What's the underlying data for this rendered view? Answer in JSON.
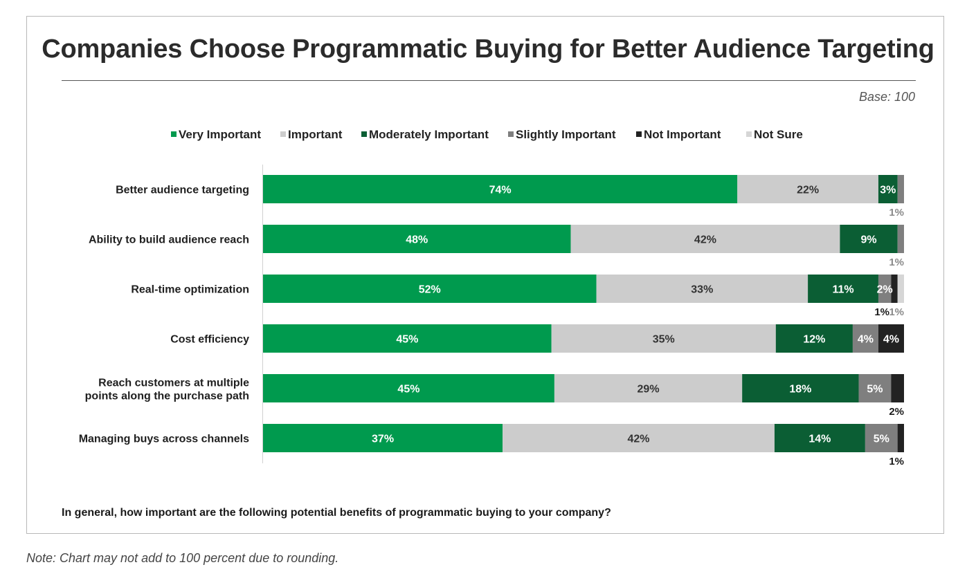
{
  "page": {
    "title": "Companies Choose Programmatic Buying for Better Audience Targeting",
    "base": "Base: 100",
    "question": "In general, how important are the following potential benefits of programmatic buying to your company?",
    "note": "Note: Chart may not add to 100 percent due to rounding."
  },
  "colors": {
    "very_important": "#009a4e",
    "important": "#cccccc",
    "moderately_important": "#0b5e34",
    "slightly_important": "#7f7f7f",
    "not_important": "#222222",
    "not_sure": "#d6d6d6"
  },
  "chart_data": {
    "type": "bar",
    "orientation": "horizontal",
    "stacked": true,
    "title": "Companies Choose Programmatic Buying for Better Audience Targeting",
    "xlabel": "",
    "ylabel": "",
    "xlim": [
      0,
      100
    ],
    "legend_position": "top",
    "categories": [
      "Better audience targeting",
      "Ability to build audience reach",
      "Real-time optimization",
      "Cost efficiency",
      "Reach customers at multiple points along the purchase path",
      "Managing buys across channels"
    ],
    "category_lines": [
      [
        "Better audience targeting"
      ],
      [
        "Ability to build audience reach"
      ],
      [
        "Real-time optimization"
      ],
      [
        "Cost efficiency"
      ],
      [
        "Reach customers at multiple",
        "points along the purchase path"
      ],
      [
        "Managing buys across channels"
      ]
    ],
    "series": [
      {
        "name": "Very Important",
        "key": "very_important",
        "values": [
          74,
          48,
          52,
          45,
          45,
          37
        ]
      },
      {
        "name": "Important",
        "key": "important",
        "values": [
          22,
          42,
          33,
          35,
          29,
          42
        ]
      },
      {
        "name": "Moderately Important",
        "key": "moderately_important",
        "values": [
          3,
          9,
          11,
          12,
          18,
          14
        ]
      },
      {
        "name": "Slightly Important",
        "key": "slightly_important",
        "values": [
          1,
          1,
          2,
          4,
          5,
          5
        ]
      },
      {
        "name": "Not Important",
        "key": "not_important",
        "values": [
          0,
          0,
          1,
          4,
          2,
          1
        ]
      },
      {
        "name": "Not Sure",
        "key": "not_sure",
        "values": [
          0,
          0,
          1,
          0,
          0,
          0
        ]
      }
    ],
    "data_labels": [
      {
        "inside": [
          "74%",
          "22%",
          "3%"
        ],
        "below": [
          "1%"
        ]
      },
      {
        "inside": [
          "48%",
          "42%",
          "9%"
        ],
        "below": [
          "1%"
        ]
      },
      {
        "inside": [
          "52%",
          "33%",
          "11%",
          "2%"
        ],
        "below": [
          "1%",
          "1%"
        ]
      },
      {
        "inside": [
          "45%",
          "35%",
          "12%",
          "4%",
          "4%"
        ],
        "below": []
      },
      {
        "inside": [
          "45%",
          "29%",
          "18%",
          "5%"
        ],
        "below": [
          "2%"
        ]
      },
      {
        "inside": [
          "37%",
          "42%",
          "14%",
          "5%"
        ],
        "below": [
          "1%"
        ]
      }
    ]
  }
}
